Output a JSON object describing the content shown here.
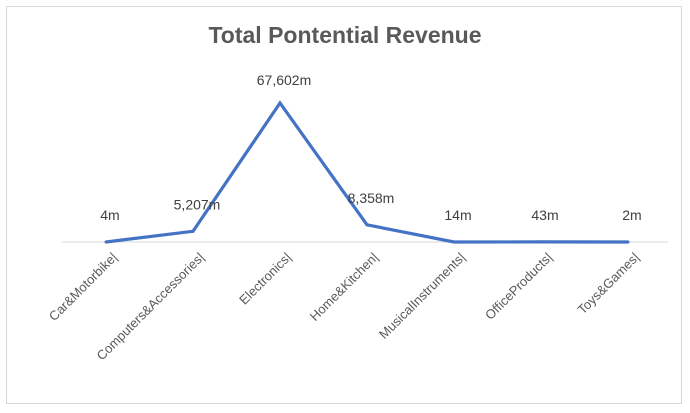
{
  "chart_data": {
    "type": "line",
    "title": "Total Pontential Revenue",
    "xlabel": "",
    "ylabel": "",
    "categories": [
      "Car&Motorbike|",
      "Computers&Accessories|",
      "Electronics|",
      "Home&Kitchen|",
      "MusicalInstruments|",
      "OfficeProducts|",
      "Toys&Games|"
    ],
    "values": [
      4,
      5207,
      67602,
      8358,
      14,
      43,
      2
    ],
    "data_labels": [
      "4m",
      "5,207m",
      "67,602m",
      "8,358m",
      "14m",
      "43m",
      "2m"
    ],
    "ylim": [
      0,
      67602
    ],
    "grid": false,
    "legend": "none",
    "colors": {
      "line": "#4472c4",
      "axis": "#d9d9d9",
      "title": "#595959"
    }
  }
}
